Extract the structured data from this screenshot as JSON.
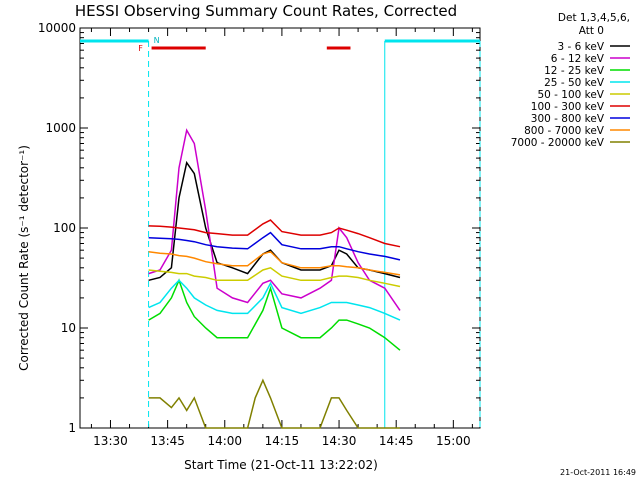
{
  "chart_data": {
    "type": "line",
    "title": "HESSI Observing Summary Count Rates, Corrected",
    "xlabel": "Start Time (21-Oct-11 13:22:02)",
    "ylabel": "Corrected Count Rate (s⁻¹ detector⁻¹)",
    "y_scale": "log",
    "ylim": [
      1,
      10000
    ],
    "y_ticks": [
      1,
      10,
      100,
      1000,
      10000
    ],
    "y_tick_labels": [
      "1",
      "10",
      "100",
      "1000",
      "10000"
    ],
    "x_min_minutes": [
      802,
      907
    ],
    "x_tick_minutes": [
      810,
      825,
      840,
      855,
      870,
      885,
      900
    ],
    "x_tick_labels": [
      "13:30",
      "13:45",
      "14:00",
      "14:15",
      "14:30",
      "14:45",
      "15:00"
    ],
    "legend_header": [
      "Det 1,3,4,5,6,",
      "Att 0"
    ],
    "flag_labels": [
      "F",
      "N"
    ],
    "timestamp": "21-Oct-2011 16:49",
    "legend_position": "right",
    "night_intervals_minutes": [
      [
        802,
        820
      ],
      [
        882,
        907
      ]
    ],
    "saa_interval_minutes": [
      [
        820,
        882
      ]
    ],
    "flare_flags_minutes": [
      [
        820,
        835
      ],
      [
        866,
        873
      ]
    ],
    "series": [
      {
        "name": "3 - 6 keV",
        "color": "#000000",
        "points": [
          [
            820,
            30
          ],
          [
            823,
            32
          ],
          [
            826,
            40
          ],
          [
            828,
            200
          ],
          [
            830,
            450
          ],
          [
            832,
            350
          ],
          [
            835,
            100
          ],
          [
            838,
            45
          ],
          [
            842,
            40
          ],
          [
            846,
            35
          ],
          [
            850,
            55
          ],
          [
            852,
            60
          ],
          [
            855,
            45
          ],
          [
            860,
            38
          ],
          [
            865,
            38
          ],
          [
            868,
            42
          ],
          [
            870,
            60
          ],
          [
            872,
            55
          ],
          [
            875,
            40
          ],
          [
            878,
            38
          ],
          [
            882,
            35
          ],
          [
            886,
            32
          ]
        ]
      },
      {
        "name": "6 - 12 keV",
        "color": "#cc00cc",
        "points": [
          [
            820,
            35
          ],
          [
            823,
            38
          ],
          [
            826,
            60
          ],
          [
            828,
            400
          ],
          [
            830,
            950
          ],
          [
            832,
            700
          ],
          [
            835,
            150
          ],
          [
            838,
            25
          ],
          [
            842,
            20
          ],
          [
            846,
            18
          ],
          [
            850,
            28
          ],
          [
            852,
            30
          ],
          [
            855,
            22
          ],
          [
            860,
            20
          ],
          [
            865,
            25
          ],
          [
            868,
            30
          ],
          [
            870,
            100
          ],
          [
            872,
            80
          ],
          [
            875,
            45
          ],
          [
            878,
            30
          ],
          [
            882,
            25
          ],
          [
            886,
            15
          ]
        ]
      },
      {
        "name": "12 - 25 keV",
        "color": "#00dd00",
        "points": [
          [
            820,
            12
          ],
          [
            823,
            14
          ],
          [
            826,
            20
          ],
          [
            828,
            30
          ],
          [
            830,
            18
          ],
          [
            832,
            13
          ],
          [
            835,
            10
          ],
          [
            838,
            8
          ],
          [
            842,
            8
          ],
          [
            846,
            8
          ],
          [
            850,
            15
          ],
          [
            852,
            25
          ],
          [
            855,
            10
          ],
          [
            860,
            8
          ],
          [
            865,
            8
          ],
          [
            868,
            10
          ],
          [
            870,
            12
          ],
          [
            872,
            12
          ],
          [
            875,
            11
          ],
          [
            878,
            10
          ],
          [
            882,
            8
          ],
          [
            886,
            6
          ]
        ]
      },
      {
        "name": "25 - 50 keV",
        "color": "#00e5ee",
        "points": [
          [
            820,
            16
          ],
          [
            823,
            18
          ],
          [
            826,
            25
          ],
          [
            828,
            30
          ],
          [
            830,
            25
          ],
          [
            832,
            20
          ],
          [
            835,
            17
          ],
          [
            838,
            15
          ],
          [
            842,
            14
          ],
          [
            846,
            14
          ],
          [
            850,
            20
          ],
          [
            852,
            28
          ],
          [
            855,
            16
          ],
          [
            860,
            14
          ],
          [
            865,
            16
          ],
          [
            868,
            18
          ],
          [
            870,
            18
          ],
          [
            872,
            18
          ],
          [
            875,
            17
          ],
          [
            878,
            16
          ],
          [
            882,
            14
          ],
          [
            886,
            12
          ]
        ]
      },
      {
        "name": "50 - 100 keV",
        "color": "#cccc00",
        "points": [
          [
            820,
            38
          ],
          [
            823,
            37
          ],
          [
            826,
            36
          ],
          [
            828,
            35
          ],
          [
            830,
            35
          ],
          [
            832,
            33
          ],
          [
            835,
            32
          ],
          [
            838,
            30
          ],
          [
            842,
            30
          ],
          [
            846,
            30
          ],
          [
            850,
            38
          ],
          [
            852,
            40
          ],
          [
            855,
            33
          ],
          [
            860,
            30
          ],
          [
            865,
            30
          ],
          [
            868,
            32
          ],
          [
            870,
            33
          ],
          [
            872,
            33
          ],
          [
            875,
            32
          ],
          [
            878,
            30
          ],
          [
            882,
            28
          ],
          [
            886,
            26
          ]
        ]
      },
      {
        "name": "100 - 300 keV",
        "color": "#dd0000",
        "points": [
          [
            820,
            105
          ],
          [
            823,
            104
          ],
          [
            826,
            102
          ],
          [
            828,
            100
          ],
          [
            830,
            98
          ],
          [
            832,
            96
          ],
          [
            835,
            90
          ],
          [
            838,
            88
          ],
          [
            842,
            85
          ],
          [
            846,
            85
          ],
          [
            850,
            110
          ],
          [
            852,
            120
          ],
          [
            855,
            92
          ],
          [
            860,
            85
          ],
          [
            865,
            85
          ],
          [
            868,
            90
          ],
          [
            870,
            100
          ],
          [
            872,
            95
          ],
          [
            875,
            88
          ],
          [
            878,
            80
          ],
          [
            882,
            70
          ],
          [
            886,
            65
          ]
        ]
      },
      {
        "name": "300 - 800 keV",
        "color": "#0000dd",
        "points": [
          [
            820,
            80
          ],
          [
            823,
            79
          ],
          [
            826,
            78
          ],
          [
            828,
            77
          ],
          [
            830,
            75
          ],
          [
            832,
            73
          ],
          [
            835,
            68
          ],
          [
            838,
            65
          ],
          [
            842,
            63
          ],
          [
            846,
            62
          ],
          [
            850,
            80
          ],
          [
            852,
            90
          ],
          [
            855,
            68
          ],
          [
            860,
            62
          ],
          [
            865,
            62
          ],
          [
            868,
            65
          ],
          [
            870,
            65
          ],
          [
            872,
            62
          ],
          [
            875,
            58
          ],
          [
            878,
            55
          ],
          [
            882,
            52
          ],
          [
            886,
            48
          ]
        ]
      },
      {
        "name": "800 - 7000 keV",
        "color": "#ff8800",
        "points": [
          [
            820,
            58
          ],
          [
            823,
            56
          ],
          [
            826,
            55
          ],
          [
            828,
            53
          ],
          [
            830,
            52
          ],
          [
            832,
            50
          ],
          [
            835,
            46
          ],
          [
            838,
            44
          ],
          [
            842,
            42
          ],
          [
            846,
            42
          ],
          [
            850,
            55
          ],
          [
            852,
            58
          ],
          [
            855,
            45
          ],
          [
            860,
            40
          ],
          [
            865,
            40
          ],
          [
            868,
            42
          ],
          [
            870,
            42
          ],
          [
            872,
            41
          ],
          [
            875,
            40
          ],
          [
            878,
            38
          ],
          [
            882,
            36
          ],
          [
            886,
            34
          ]
        ]
      },
      {
        "name": "7000 - 20000 keV",
        "color": "#808000",
        "points": [
          [
            820,
            2
          ],
          [
            823,
            2
          ],
          [
            826,
            1.6
          ],
          [
            828,
            2
          ],
          [
            830,
            1.5
          ],
          [
            832,
            2
          ],
          [
            835,
            1
          ],
          [
            838,
            1
          ],
          [
            842,
            1
          ],
          [
            846,
            1
          ],
          [
            848,
            2
          ],
          [
            850,
            3
          ],
          [
            852,
            2
          ],
          [
            855,
            1
          ],
          [
            860,
            1
          ],
          [
            865,
            1
          ],
          [
            868,
            2
          ],
          [
            870,
            2
          ],
          [
            872,
            1.5
          ],
          [
            875,
            1
          ],
          [
            878,
            1
          ],
          [
            882,
            1
          ],
          [
            886,
            1
          ]
        ]
      }
    ]
  }
}
